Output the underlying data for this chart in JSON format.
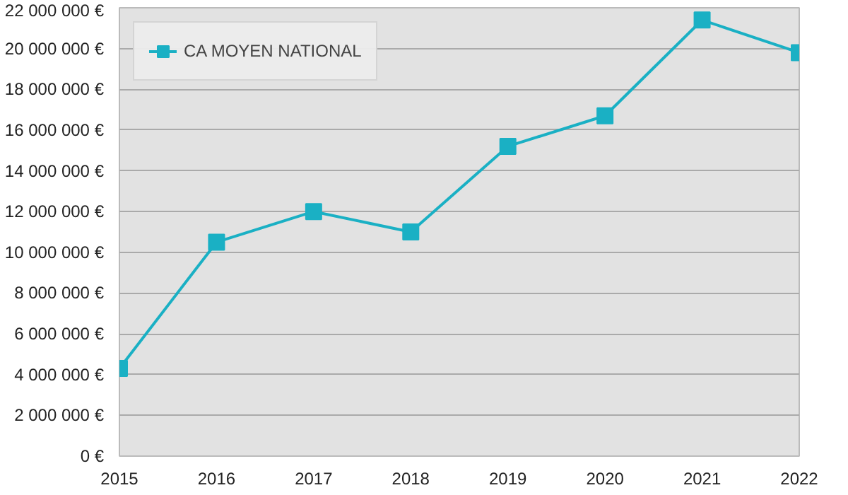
{
  "chart_data": {
    "type": "line",
    "x": [
      2015,
      2016,
      2017,
      2018,
      2019,
      2020,
      2021,
      2022
    ],
    "series": [
      {
        "name": "CA MOYEN NATIONAL",
        "color": "#1ab0c4",
        "values": [
          4300000,
          10500000,
          12000000,
          11000000,
          15200000,
          16700000,
          21400000,
          19800000
        ]
      }
    ],
    "xlim": [
      2015,
      2022
    ],
    "xticks": [
      2015,
      2016,
      2017,
      2018,
      2019,
      2020,
      2021,
      2022
    ],
    "ylim": [
      0,
      22000000
    ],
    "yticks": [
      {
        "value": 0,
        "label": "0 €"
      },
      {
        "value": 2000000,
        "label": "2 000 000 €"
      },
      {
        "value": 4000000,
        "label": "4 000 000 €"
      },
      {
        "value": 6000000,
        "label": "6 000 000 €"
      },
      {
        "value": 8000000,
        "label": "8 000 000 €"
      },
      {
        "value": 10000000,
        "label": "10 000 000 €"
      },
      {
        "value": 12000000,
        "label": "12 000 000 €"
      },
      {
        "value": 14000000,
        "label": "14 000 000 €"
      },
      {
        "value": 16000000,
        "label": "16 000 000 €"
      },
      {
        "value": 18000000,
        "label": "18 000 000 €"
      },
      {
        "value": 20000000,
        "label": "20 000 000 €"
      },
      {
        "value": 22000000,
        "label": "22 000 000 €"
      }
    ],
    "grid": "y",
    "legend": "top left",
    "marker": "square",
    "line_style": "solid"
  }
}
